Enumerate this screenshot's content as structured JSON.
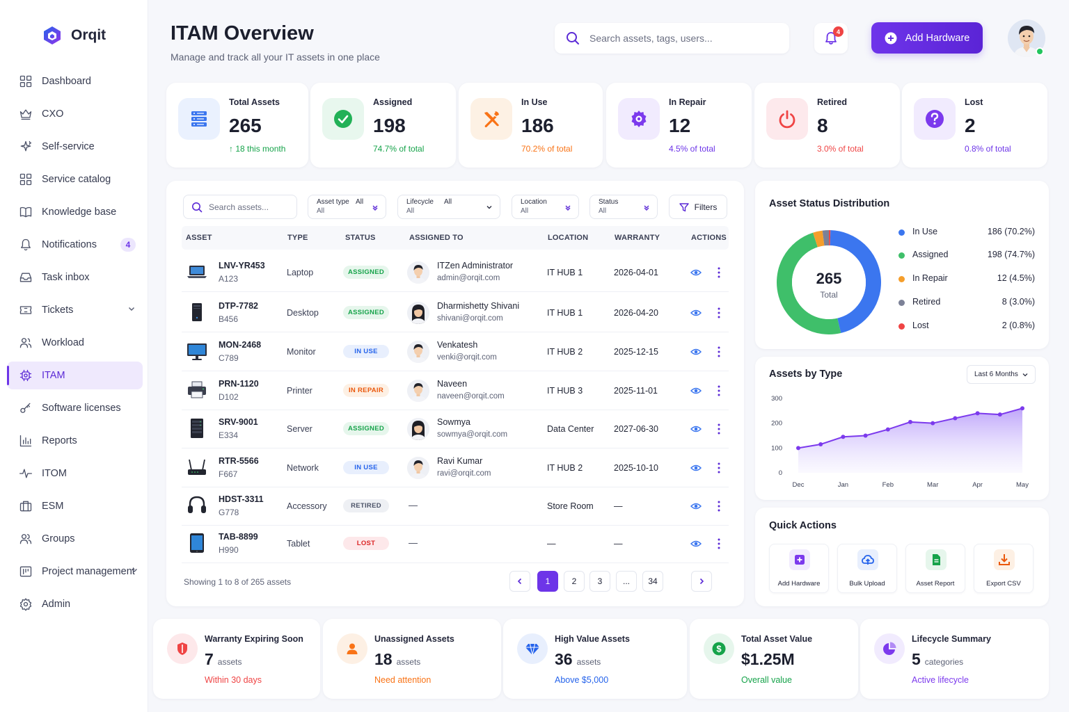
{
  "brand": {
    "name": "Orqit"
  },
  "header": {
    "title": "ITAM Overview",
    "subtitle": "Manage and track all your IT assets in one place",
    "search_placeholder": "Search assets, tags, users...",
    "notification_count": "4",
    "add_button": "Add Hardware"
  },
  "sidebar": {
    "items": [
      {
        "label": "Dashboard",
        "icon": "grid-icon"
      },
      {
        "label": "CXO",
        "icon": "crown-icon"
      },
      {
        "label": "Self-service",
        "icon": "sparkle-icon"
      },
      {
        "label": "Service catalog",
        "icon": "catalog-icon"
      },
      {
        "label": "Knowledge base",
        "icon": "book-icon"
      },
      {
        "label": "Notifications",
        "icon": "bell-icon",
        "badge": "4"
      },
      {
        "label": "Task inbox",
        "icon": "inbox-icon"
      },
      {
        "label": "Tickets",
        "icon": "ticket-icon"
      },
      {
        "label": "Workload",
        "icon": "users-icon"
      },
      {
        "label": "ITAM",
        "icon": "chip-icon"
      },
      {
        "label": "Software licenses",
        "icon": "key-icon"
      },
      {
        "label": "Reports",
        "icon": "bar-chart-icon"
      },
      {
        "label": "ITOM",
        "icon": "pulse-icon"
      },
      {
        "label": "ESM",
        "icon": "briefcase-icon"
      },
      {
        "label": "Groups",
        "icon": "group-icon"
      },
      {
        "label": "Project management",
        "icon": "project-icon"
      },
      {
        "label": "Admin",
        "icon": "gear-icon"
      }
    ]
  },
  "stats": [
    {
      "label": "Total Assets",
      "value": "265",
      "sub": "↑ 18 this month",
      "color": "#16a34a"
    },
    {
      "label": "Assigned",
      "value": "198",
      "sub": "74.7% of total",
      "color": "#16a34a"
    },
    {
      "label": "In Use",
      "value": "186",
      "sub": "70.2% of total",
      "color": "#f97316"
    },
    {
      "label": "In Repair",
      "value": "12",
      "sub": "4.5% of total",
      "color": "#6d35e8"
    },
    {
      "label": "Retired",
      "value": "8",
      "sub": "3.0% of total",
      "color": "#ef4444"
    },
    {
      "label": "Lost",
      "value": "2",
      "sub": "0.8% of total",
      "color": "#6d35e8"
    }
  ],
  "table": {
    "search_placeholder": "Search assets...",
    "filters": [
      {
        "label": "Asset type",
        "value": "All",
        "top_value": "All"
      },
      {
        "label": "Lifecycle",
        "value": "All",
        "top_value": "All"
      },
      {
        "label": "Location",
        "value": "All"
      },
      {
        "label": "Status",
        "value": "All"
      }
    ],
    "filters_button": "Filters",
    "columns": [
      "ASSET",
      "TYPE",
      "STATUS",
      "ASSIGNED TO",
      "LOCATION",
      "WARRANTY",
      "ACTIONS"
    ],
    "rows": [
      {
        "id": "LNV-YR453",
        "tag": "A123",
        "type": "Laptop",
        "status": "ASSIGNED",
        "person": "ITZen Administrator",
        "email": "admin@orqit.com",
        "location": "IT HUB 1",
        "warranty": "2026-04-01",
        "icon": "laptop-icon",
        "gender": "m"
      },
      {
        "id": "DTP-7782",
        "tag": "B456",
        "type": "Desktop",
        "status": "ASSIGNED",
        "person": "Dharmishetty Shivani",
        "email": "shivani@orqit.com",
        "location": "IT HUB 1",
        "warranty": "2026-04-20",
        "icon": "desktop-icon",
        "gender": "f"
      },
      {
        "id": "MON-2468",
        "tag": "C789",
        "type": "Monitor",
        "status": "IN USE",
        "person": "Venkatesh",
        "email": "venki@orqit.com",
        "location": "IT HUB 2",
        "warranty": "2025-12-15",
        "icon": "monitor-icon",
        "gender": "m"
      },
      {
        "id": "PRN-1120",
        "tag": "D102",
        "type": "Printer",
        "status": "IN REPAIR",
        "person": "Naveen",
        "email": "naveen@orqit.com",
        "location": "IT HUB 3",
        "warranty": "2025-11-01",
        "icon": "printer-icon",
        "gender": "m"
      },
      {
        "id": "SRV-9001",
        "tag": "E334",
        "type": "Server",
        "status": "ASSIGNED",
        "person": "Sowmya",
        "email": "sowmya@orqit.com",
        "location": "Data Center",
        "warranty": "2027-06-30",
        "icon": "server-icon",
        "gender": "f"
      },
      {
        "id": "RTR-5566",
        "tag": "F667",
        "type": "Network",
        "status": "IN USE",
        "person": "Ravi Kumar",
        "email": "ravi@orqit.com",
        "location": "IT HUB 2",
        "warranty": "2025-10-10",
        "icon": "router-icon",
        "gender": "m"
      },
      {
        "id": "HDST-3311",
        "tag": "G778",
        "type": "Accessory",
        "status": "RETIRED",
        "person": "—",
        "email": "",
        "location": "Store Room",
        "warranty": "—",
        "icon": "headset-icon",
        "gender": ""
      },
      {
        "id": "TAB-8899",
        "tag": "H990",
        "type": "Tablet",
        "status": "LOST",
        "person": "—",
        "email": "",
        "location": "—",
        "warranty": "—",
        "icon": "tablet-icon",
        "gender": ""
      }
    ],
    "showing": "Showing 1 to 8 of 265 assets",
    "pages": [
      "1",
      "2",
      "3",
      "...",
      "34"
    ]
  },
  "status_colors": {
    "ASSIGNED": {
      "bg": "#e6f6ec",
      "fg": "#16a34a"
    },
    "IN USE": {
      "bg": "#e8effd",
      "fg": "#2563eb"
    },
    "IN REPAIR": {
      "bg": "#fdf0e4",
      "fg": "#ea580c"
    },
    "RETIRED": {
      "bg": "#eef0f4",
      "fg": "#4b5368"
    },
    "LOST": {
      "bg": "#fde8ea",
      "fg": "#dc2626"
    }
  },
  "distribution": {
    "title": "Asset Status Distribution",
    "total_value": "265",
    "total_label": "Total",
    "legend": [
      {
        "name": "In Use",
        "value": "186 (70.2%)",
        "count": 186,
        "color": "#3b76ef"
      },
      {
        "name": "Assigned",
        "value": "198 (74.7%)",
        "count": 198,
        "color": "#3fbf6a"
      },
      {
        "name": "In Repair",
        "value": "12 (4.5%)",
        "count": 12,
        "color": "#f59e2b"
      },
      {
        "name": "Retired",
        "value": "8 (3.0%)",
        "count": 8,
        "color": "#7c8197"
      },
      {
        "name": "Lost",
        "value": "2 (0.8%)",
        "count": 2,
        "color": "#ef4444"
      }
    ]
  },
  "chart_data": {
    "type": "area",
    "title": "Assets by Type",
    "period": "Last 6 Months",
    "x_ticks": [
      "Dec",
      "Jan",
      "Feb",
      "Mar",
      "Apr",
      "May"
    ],
    "y_ticks": [
      "0",
      "100",
      "200",
      "300"
    ],
    "ylim": [
      0,
      300
    ],
    "x": [
      0,
      0.5,
      1,
      1.5,
      2,
      2.5,
      3,
      3.5,
      4,
      4.5,
      5
    ],
    "values": [
      100,
      115,
      145,
      150,
      175,
      205,
      200,
      220,
      240,
      235,
      260
    ],
    "color": "#7c3aed"
  },
  "quick_actions": {
    "title": "Quick Actions",
    "items": [
      {
        "label": "Add Hardware",
        "icon": "plus-icon",
        "color": "#7c3aed",
        "bg": "#f1ebfe"
      },
      {
        "label": "Bulk Upload",
        "icon": "cloud-upload-icon",
        "color": "#2563eb",
        "bg": "#e8effd"
      },
      {
        "label": "Asset Report",
        "icon": "file-report-icon",
        "color": "#16a34a",
        "bg": "#e6f6ec"
      },
      {
        "label": "Export CSV",
        "icon": "download-icon",
        "color": "#ea580c",
        "bg": "#fdf0e4"
      }
    ]
  },
  "bottom_cards": [
    {
      "label": "Warranty Expiring Soon",
      "value": "7",
      "unit": "assets",
      "sub": "Within 30 days",
      "color": "#ef4444",
      "bg": "#fde8ea",
      "icon": "shield-icon"
    },
    {
      "label": "Unassigned Assets",
      "value": "18",
      "unit": "assets",
      "sub": "Need attention",
      "color": "#f97316",
      "bg": "#fdf0e4",
      "icon": "user-icon"
    },
    {
      "label": "High Value Assets",
      "value": "36",
      "unit": "assets",
      "sub": "Above $5,000",
      "color": "#2563eb",
      "bg": "#e8effd",
      "icon": "diamond-icon"
    },
    {
      "label": "Total Asset Value",
      "value": "$1.25M",
      "unit": "",
      "sub": "Overall value",
      "color": "#16a34a",
      "bg": "#e6f6ec",
      "icon": "dollar-icon"
    },
    {
      "label": "Lifecycle Summary",
      "value": "5",
      "unit": "categories",
      "sub": "Active lifecycle",
      "color": "#7c3aed",
      "bg": "#f1ebfe",
      "icon": "pie-icon"
    }
  ]
}
